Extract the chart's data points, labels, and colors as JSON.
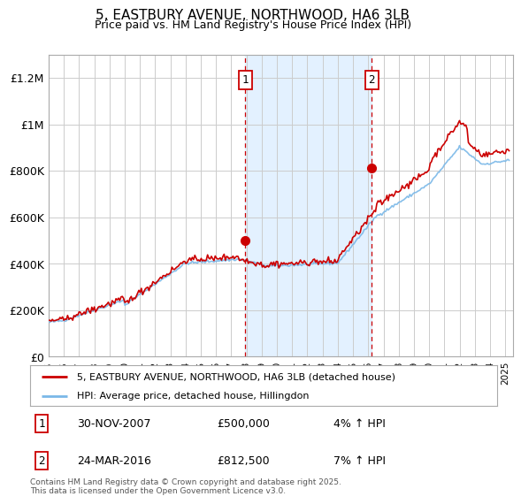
{
  "title": "5, EASTBURY AVENUE, NORTHWOOD, HA6 3LB",
  "subtitle": "Price paid vs. HM Land Registry's House Price Index (HPI)",
  "ylabel_ticks": [
    "£0",
    "£200K",
    "£400K",
    "£600K",
    "£800K",
    "£1M",
    "£1.2M"
  ],
  "ytick_values": [
    0,
    200000,
    400000,
    600000,
    800000,
    1000000,
    1200000
  ],
  "ylim": [
    0,
    1300000
  ],
  "xlim_start": 1995.0,
  "xlim_end": 2025.5,
  "hpi_color": "#7ab8e8",
  "price_color": "#cc0000",
  "sale1_date": 2007.92,
  "sale1_price": 500000,
  "sale2_date": 2016.23,
  "sale2_price": 812500,
  "legend_line1": "5, EASTBURY AVENUE, NORTHWOOD, HA6 3LB (detached house)",
  "legend_line2": "HPI: Average price, detached house, Hillingdon",
  "annot1_label": "1",
  "annot1_date": "30-NOV-2007",
  "annot1_price": "£500,000",
  "annot1_hpi": "4% ↑ HPI",
  "annot2_label": "2",
  "annot2_date": "24-MAR-2016",
  "annot2_price": "£812,500",
  "annot2_hpi": "7% ↑ HPI",
  "footer": "Contains HM Land Registry data © Crown copyright and database right 2025.\nThis data is licensed under the Open Government Licence v3.0.",
  "background_color": "#ffffff",
  "plot_bg_color": "#ffffff",
  "grid_color": "#cccccc",
  "span_color": "#ddeeff"
}
